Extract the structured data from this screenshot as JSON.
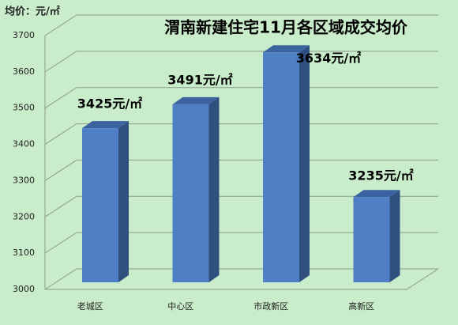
{
  "chart_data": {
    "type": "bar3d",
    "title": "渭南新建住宅11月各区域成交均价",
    "y_label": "均价：元/㎡",
    "categories": [
      "老城区",
      "中心区",
      "市政新区",
      "高新区"
    ],
    "values": [
      3425,
      3491,
      3634,
      3235
    ],
    "value_labels": [
      "3425元/㎡",
      "3491元/㎡",
      "3634元/㎡",
      "3235元/㎡"
    ],
    "color": "#4f7fc4",
    "ylim": [
      3000,
      3700
    ],
    "yticks": [
      3000,
      3100,
      3200,
      3300,
      3400,
      3500,
      3600,
      3700
    ],
    "grid": true
  }
}
